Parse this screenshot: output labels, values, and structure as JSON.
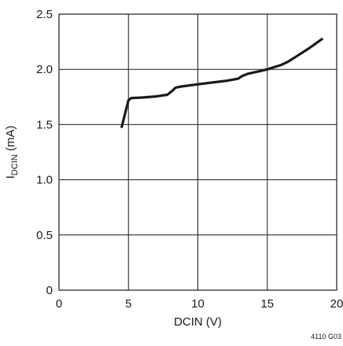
{
  "chart_data": {
    "type": "line",
    "title": "",
    "xlabel": "DCIN (V)",
    "ylabel": {
      "main": "I",
      "subscript": "DCIN",
      "unit": " (mA)"
    },
    "xlim": [
      0,
      20
    ],
    "ylim": [
      0,
      2.5
    ],
    "x_ticks": [
      0,
      5,
      10,
      15,
      20
    ],
    "x_tick_labels": [
      "0",
      "5",
      "10",
      "15",
      "20"
    ],
    "y_ticks": [
      0,
      0.5,
      1.0,
      1.5,
      2.0,
      2.5
    ],
    "y_tick_labels": [
      "0",
      "0.5",
      "1.0",
      "1.5",
      "2.0",
      "2.5"
    ],
    "grid": true,
    "series": [
      {
        "x": [
          4.5,
          4.8,
          5.0,
          5.2,
          6.0,
          7.0,
          7.8,
          8.1,
          8.4,
          8.8,
          10.0,
          11.0,
          12.0,
          12.9,
          13.2,
          13.6,
          14.5,
          15.0,
          15.5,
          16.0,
          16.5,
          17.0,
          18.0,
          19.0
        ],
        "y": [
          1.47,
          1.62,
          1.72,
          1.74,
          1.745,
          1.755,
          1.77,
          1.8,
          1.835,
          1.845,
          1.865,
          1.88,
          1.895,
          1.915,
          1.94,
          1.96,
          1.985,
          2.0,
          2.02,
          2.04,
          2.07,
          2.11,
          2.19,
          2.28
        ]
      }
    ],
    "line_color": "#1a1a1a",
    "figure_id": "4110 G03"
  }
}
